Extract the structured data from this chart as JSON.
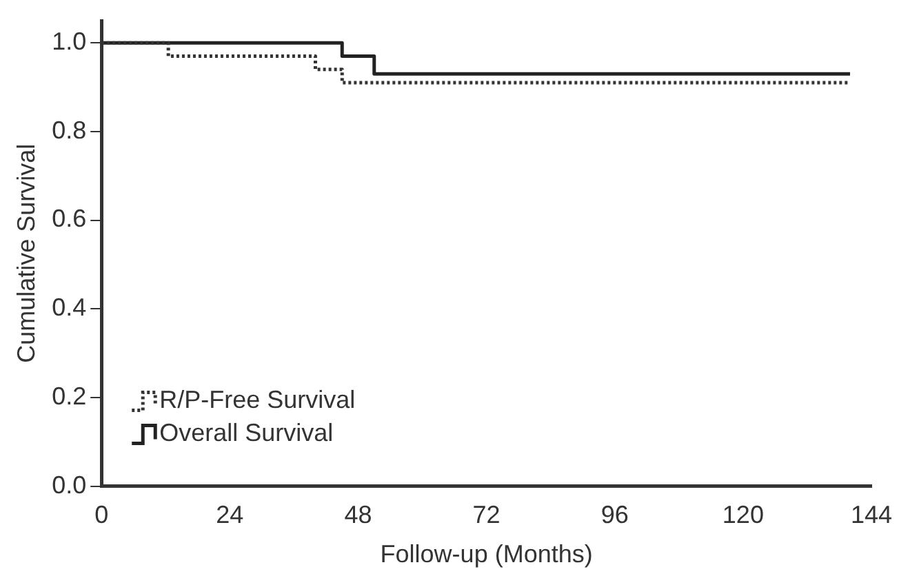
{
  "chart_data": {
    "type": "step",
    "xlabel": "Follow-up (Months)",
    "ylabel": "Cumulative Survival",
    "xlim": [
      0,
      144
    ],
    "xticks": [
      0,
      24,
      48,
      72,
      96,
      120,
      144
    ],
    "ylim": [
      0,
      1.05
    ],
    "yticks": [
      {
        "value": 0,
        "label": "0.0"
      },
      {
        "value": 0.2,
        "label": "0.2"
      },
      {
        "value": 0.4,
        "label": "0.4"
      },
      {
        "value": 0.6,
        "label": "0.6"
      },
      {
        "value": 0.8,
        "label": "0.8"
      },
      {
        "value": 1,
        "label": "1.0"
      }
    ],
    "grid": false,
    "legend": "bottom left",
    "marker": "none",
    "series": [
      {
        "name": "R/P-Free Survival",
        "color": "#333333",
        "line_style": "dotted",
        "x": [
          0,
          12.5,
          40,
          45,
          140
        ],
        "values": [
          1,
          0.97,
          0.94,
          0.91,
          0.91
        ]
      },
      {
        "name": "Overall Survival",
        "color": "#222222",
        "line_style": "solid",
        "x": [
          0,
          45,
          51,
          140
        ],
        "values": [
          1,
          0.97,
          0.93,
          0.93
        ]
      }
    ]
  }
}
